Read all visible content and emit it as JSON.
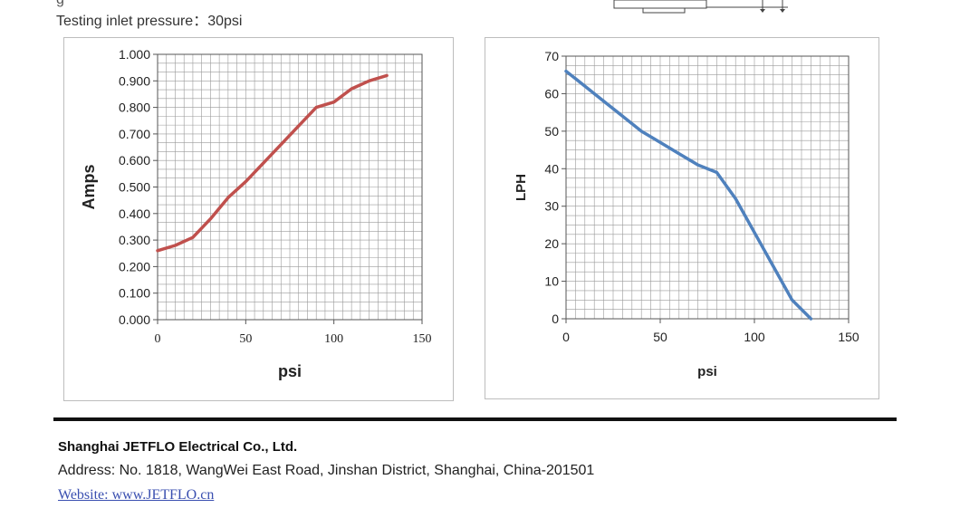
{
  "header": {
    "inlet_pressure": "Testing inlet pressure：30psi"
  },
  "footer": {
    "company": "Shanghai JETFLO Electrical Co., Ltd.",
    "address": "Address: No. 1818, WangWei East Road, Jinshan District, Shanghai, China-201501",
    "website": "Website: www.JETFLO.cn"
  },
  "chart_data": [
    {
      "type": "line",
      "xlabel": "psi",
      "ylabel": "Amps",
      "xlim": [
        0,
        150
      ],
      "ylim": [
        0,
        1.0
      ],
      "xticks": [
        "0",
        "50",
        "100",
        "150"
      ],
      "yticks": [
        "0.000",
        "0.100",
        "0.200",
        "0.300",
        "0.400",
        "0.500",
        "0.600",
        "0.700",
        "0.800",
        "0.900",
        "1.000"
      ],
      "grid": true,
      "color": "#c0504d",
      "x": [
        0,
        10,
        20,
        30,
        40,
        50,
        60,
        70,
        80,
        90,
        100,
        110,
        120,
        130
      ],
      "y": [
        0.26,
        0.28,
        0.31,
        0.38,
        0.46,
        0.52,
        0.59,
        0.66,
        0.73,
        0.8,
        0.82,
        0.87,
        0.9,
        0.92
      ]
    },
    {
      "type": "line",
      "xlabel": "psi",
      "ylabel": "LPH",
      "xlim": [
        0,
        150
      ],
      "ylim": [
        0,
        70
      ],
      "xticks": [
        "0",
        "50",
        "100",
        "150"
      ],
      "yticks": [
        "0",
        "10",
        "20",
        "30",
        "40",
        "50",
        "60",
        "70"
      ],
      "grid": true,
      "color": "#4f81bd",
      "x": [
        0,
        10,
        20,
        30,
        40,
        50,
        60,
        70,
        80,
        90,
        100,
        110,
        120,
        130
      ],
      "y": [
        66,
        62,
        58,
        54,
        50,
        47,
        44,
        41,
        39,
        32,
        23,
        14,
        5,
        0
      ]
    }
  ]
}
